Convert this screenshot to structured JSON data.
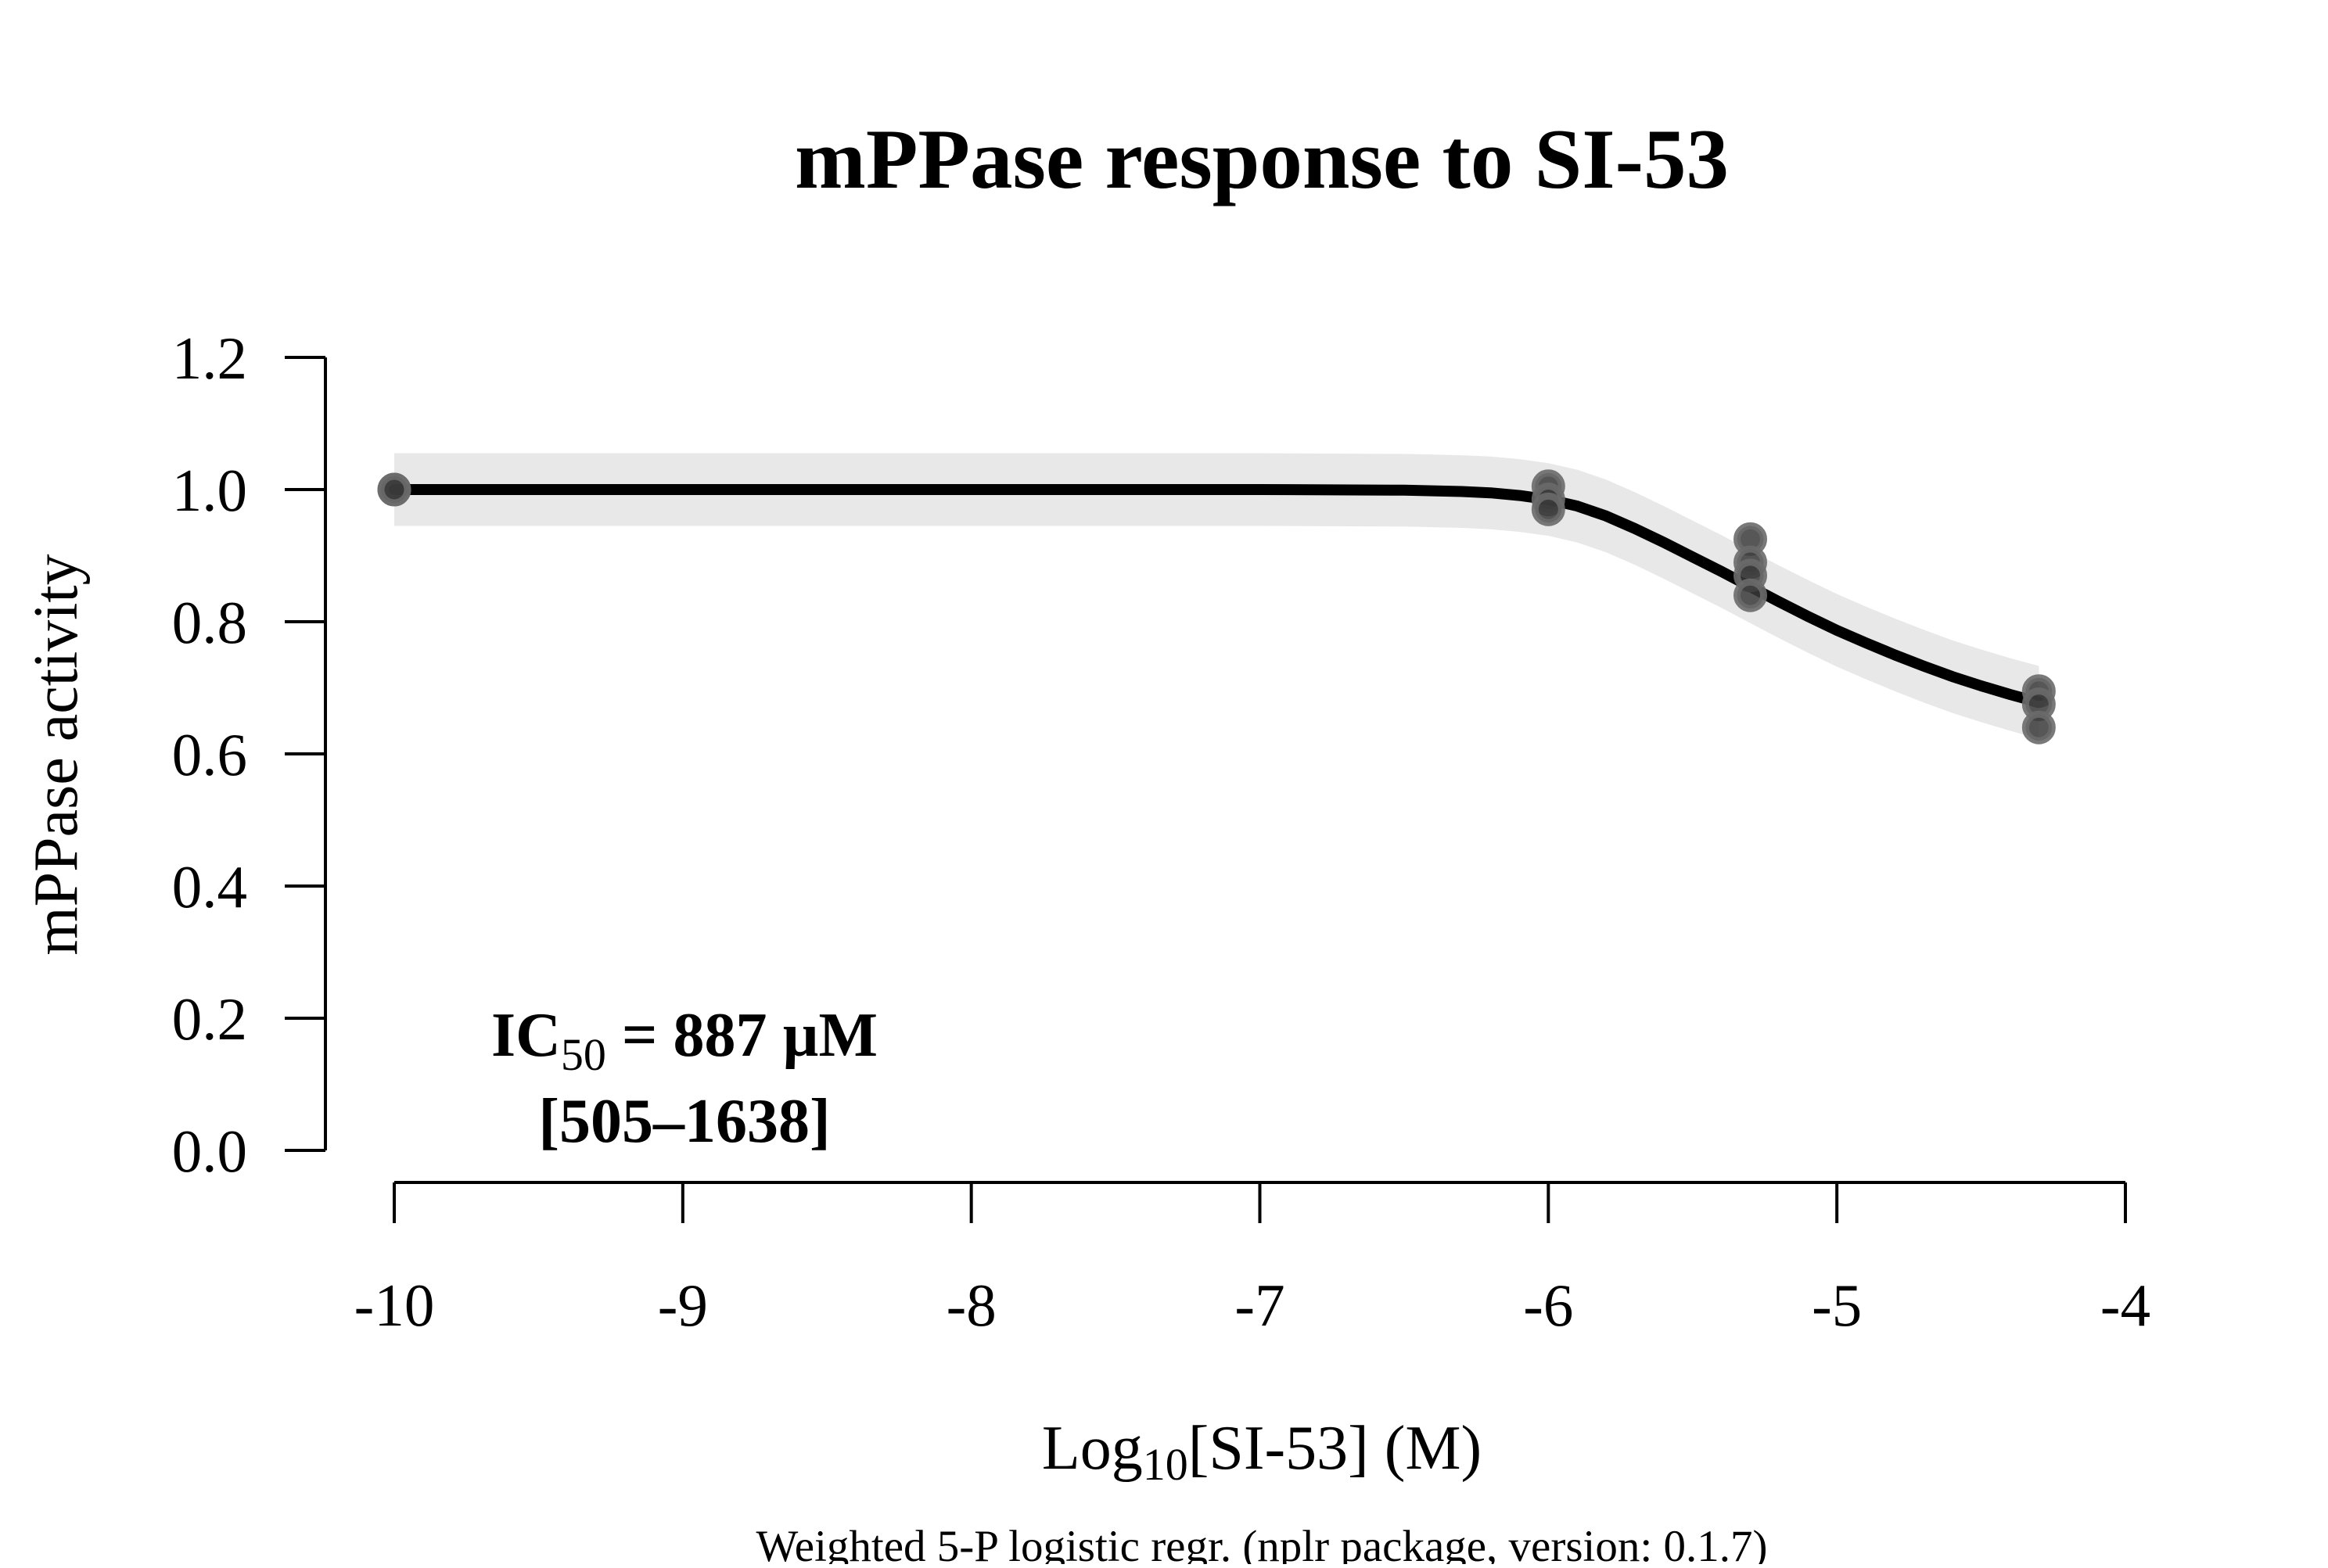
{
  "chart_data": {
    "type": "scatter",
    "title": "mPPase response to SI-53",
    "xlabel": {
      "prefix": "Log",
      "subscript": "10",
      "suffix": "[SI-53] (M)"
    },
    "ylabel": "mPPase activity",
    "caption": "Weighted 5-P logistic regr. (nplr package, version: 0.1.7)",
    "annotation": {
      "line1_prefix": "IC",
      "line1_subscript": "50",
      "line1_suffix": " = 887 µM",
      "line2": "[505–1638]"
    },
    "xlim": [
      -10,
      -4
    ],
    "ylim": [
      0,
      1.2
    ],
    "x_ticks": [
      -10,
      -9,
      -8,
      -7,
      -6,
      -5,
      -4
    ],
    "y_ticks": [
      0.0,
      0.2,
      0.4,
      0.6,
      0.8,
      1.0,
      1.2
    ],
    "x_tick_labels": [
      "-10",
      "-9",
      "-8",
      "-7",
      "-6",
      "-5",
      "-4"
    ],
    "y_tick_labels": [
      "0.0",
      "0.2",
      "0.4",
      "0.6",
      "0.8",
      "1.0",
      "1.2"
    ],
    "grid": false,
    "points": [
      {
        "x": -10.0,
        "y": 1.0
      },
      {
        "x": -10.0,
        "y": 1.0
      },
      {
        "x": -6.0,
        "y": 1.005
      },
      {
        "x": -6.0,
        "y": 0.985
      },
      {
        "x": -6.0,
        "y": 0.97
      },
      {
        "x": -5.3,
        "y": 0.925
      },
      {
        "x": -5.3,
        "y": 0.89
      },
      {
        "x": -5.3,
        "y": 0.87
      },
      {
        "x": -5.3,
        "y": 0.84
      },
      {
        "x": -4.3,
        "y": 0.695
      },
      {
        "x": -4.3,
        "y": 0.675
      },
      {
        "x": -4.3,
        "y": 0.64
      }
    ],
    "fit_curve": {
      "x": [
        -10,
        -9,
        -8,
        -7,
        -6.5,
        -6.3,
        -6.2,
        -6.1,
        -6.0,
        -5.9,
        -5.8,
        -5.7,
        -5.6,
        -5.5,
        -5.4,
        -5.3,
        -5.2,
        -5.1,
        -5.0,
        -4.9,
        -4.8,
        -4.7,
        -4.6,
        -4.5,
        -4.4,
        -4.3
      ],
      "y": [
        1.0,
        1.0,
        1.0,
        1.0,
        0.999,
        0.997,
        0.995,
        0.991,
        0.985,
        0.975,
        0.96,
        0.941,
        0.92,
        0.898,
        0.876,
        0.853,
        0.83,
        0.808,
        0.787,
        0.768,
        0.75,
        0.733,
        0.717,
        0.703,
        0.69,
        0.678
      ]
    },
    "confidence_band_halfwidth": 0.055,
    "colors": {
      "curve": "#000000",
      "band": "#e8e8e8",
      "point_fill": "#3a3a3a",
      "point_stroke": "#6a6a6a"
    }
  }
}
